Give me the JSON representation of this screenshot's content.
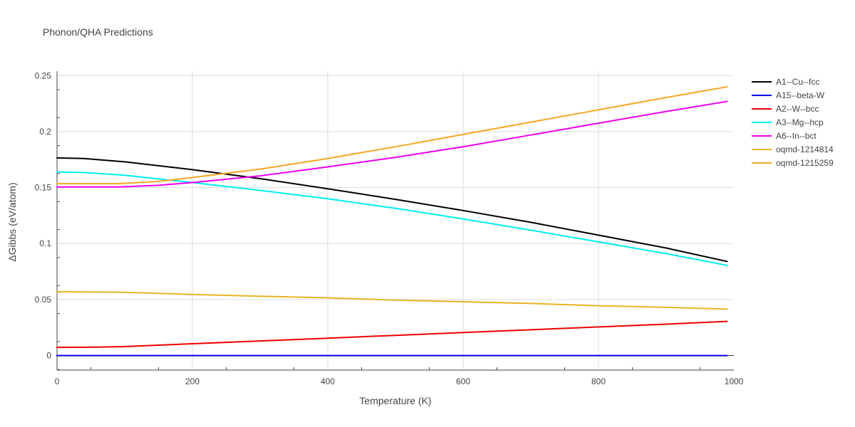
{
  "chart_data": {
    "type": "line",
    "title": "Phonon/QHA Predictions",
    "xlabel": "Temperature (K)",
    "ylabel": "ΔGibbs (eV/atom)",
    "xlim": [
      0,
      1000
    ],
    "ylim": [
      -0.013,
      0.254
    ],
    "xticks": [
      0,
      200,
      400,
      600,
      800,
      1000
    ],
    "xtick_labels": [
      "0",
      "200",
      "400",
      "600",
      "800",
      "1000"
    ],
    "yticks": [
      0,
      0.05,
      0.1,
      0.15,
      0.2,
      0.25
    ],
    "ytick_labels": [
      "0",
      "0.05",
      "0.1",
      "0.15",
      "0.2",
      "0.25"
    ],
    "grid": true,
    "legend_position": "right",
    "series": [
      {
        "name": "A1--Cu--fcc",
        "color": "#000000",
        "x": [
          0,
          40,
          100,
          200,
          300,
          400,
          500,
          600,
          700,
          800,
          900,
          990
        ],
        "y": [
          0.1765,
          0.176,
          0.173,
          0.166,
          0.158,
          0.149,
          0.1395,
          0.1295,
          0.119,
          0.1075,
          0.096,
          0.084
        ]
      },
      {
        "name": "A15--beta-W",
        "color": "#0000ee",
        "x": [
          0,
          200,
          400,
          600,
          800,
          990
        ],
        "y": [
          0,
          0,
          0,
          0,
          0,
          0
        ]
      },
      {
        "name": "A2--W--bcc",
        "color": "#ee0000",
        "x": [
          0,
          60,
          100,
          200,
          300,
          400,
          500,
          600,
          700,
          800,
          900,
          990
        ],
        "y": [
          0.0073,
          0.0075,
          0.008,
          0.0105,
          0.013,
          0.0155,
          0.018,
          0.0205,
          0.023,
          0.0255,
          0.028,
          0.0305
        ]
      },
      {
        "name": "A3--Mg--hcp",
        "color": "#00eeee",
        "x": [
          0,
          40,
          100,
          200,
          300,
          400,
          500,
          600,
          700,
          800,
          900,
          990
        ],
        "y": [
          0.164,
          0.1635,
          0.161,
          0.1545,
          0.1475,
          0.14,
          0.1315,
          0.122,
          0.112,
          0.1015,
          0.091,
          0.0805
        ]
      },
      {
        "name": "A6--In--bct",
        "color": "#ee00ee",
        "x": [
          0,
          90,
          150,
          200,
          300,
          400,
          500,
          600,
          700,
          800,
          900,
          990
        ],
        "y": [
          0.1505,
          0.1505,
          0.152,
          0.1545,
          0.1605,
          0.1685,
          0.177,
          0.1865,
          0.197,
          0.2075,
          0.218,
          0.227
        ]
      },
      {
        "name": "oqmd-1214814",
        "color": "#e6b422",
        "x": [
          0,
          100,
          200,
          300,
          400,
          500,
          600,
          700,
          800,
          900,
          990
        ],
        "y": [
          0.057,
          0.0565,
          0.0545,
          0.053,
          0.0515,
          0.0495,
          0.048,
          0.0465,
          0.0445,
          0.043,
          0.0415
        ]
      },
      {
        "name": "oqmd-1215259",
        "color": "#f5a623",
        "x": [
          0,
          90,
          150,
          200,
          300,
          400,
          500,
          600,
          700,
          800,
          900,
          990
        ],
        "y": [
          0.1535,
          0.1535,
          0.1555,
          0.159,
          0.1665,
          0.176,
          0.1865,
          0.1975,
          0.2085,
          0.2195,
          0.2305,
          0.24
        ]
      }
    ]
  }
}
